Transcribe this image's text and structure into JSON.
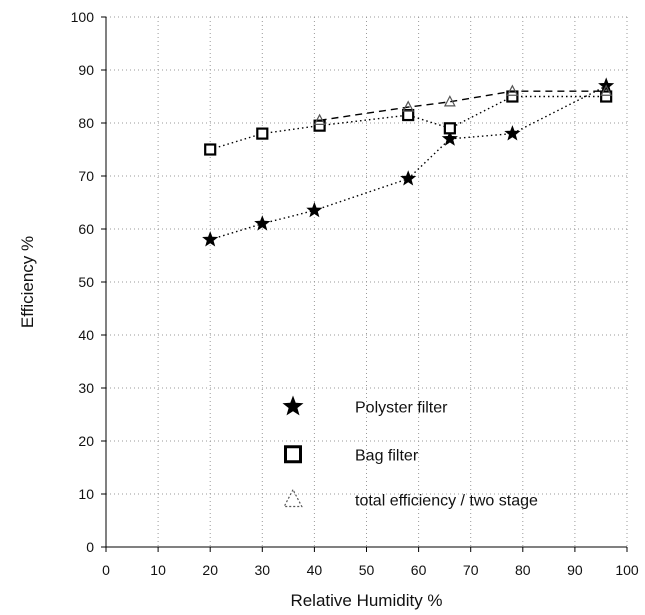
{
  "chart_data": {
    "type": "line",
    "title": "",
    "xlabel": "Relative Humidity %",
    "ylabel": "Efficiency %",
    "xlim": [
      0,
      100
    ],
    "ylim": [
      0,
      100
    ],
    "xticks": [
      "0",
      "10",
      "20",
      "30",
      "40",
      "50",
      "60",
      "70",
      "80",
      "90",
      "100"
    ],
    "yticks": [
      "0",
      "10",
      "20",
      "30",
      "40",
      "50",
      "60",
      "70",
      "80",
      "90",
      "100"
    ],
    "grid": true,
    "legend_position": "bottom-center",
    "series": [
      {
        "name": "Polyster filter",
        "marker": "star",
        "line_style": "dotted",
        "color": "#000000",
        "points": [
          [
            20,
            58
          ],
          [
            30,
            61
          ],
          [
            40,
            63.5
          ],
          [
            58,
            69.5
          ],
          [
            66,
            77
          ],
          [
            78,
            78
          ],
          [
            96,
            87
          ]
        ]
      },
      {
        "name": "Bag filter",
        "marker": "square",
        "line_style": "dotted",
        "color": "#000000",
        "points": [
          [
            20,
            75
          ],
          [
            30,
            78
          ],
          [
            41,
            79.5
          ],
          [
            58,
            81.5
          ],
          [
            66,
            79
          ],
          [
            78,
            85
          ],
          [
            96,
            85
          ]
        ]
      },
      {
        "name": "total efficiency / two stage",
        "marker": "triangle",
        "line_style": "dashed",
        "color": "#000000",
        "points": [
          [
            41,
            80.5
          ],
          [
            58,
            83
          ],
          [
            66,
            84
          ],
          [
            78,
            86
          ],
          [
            96,
            86
          ]
        ]
      }
    ]
  }
}
